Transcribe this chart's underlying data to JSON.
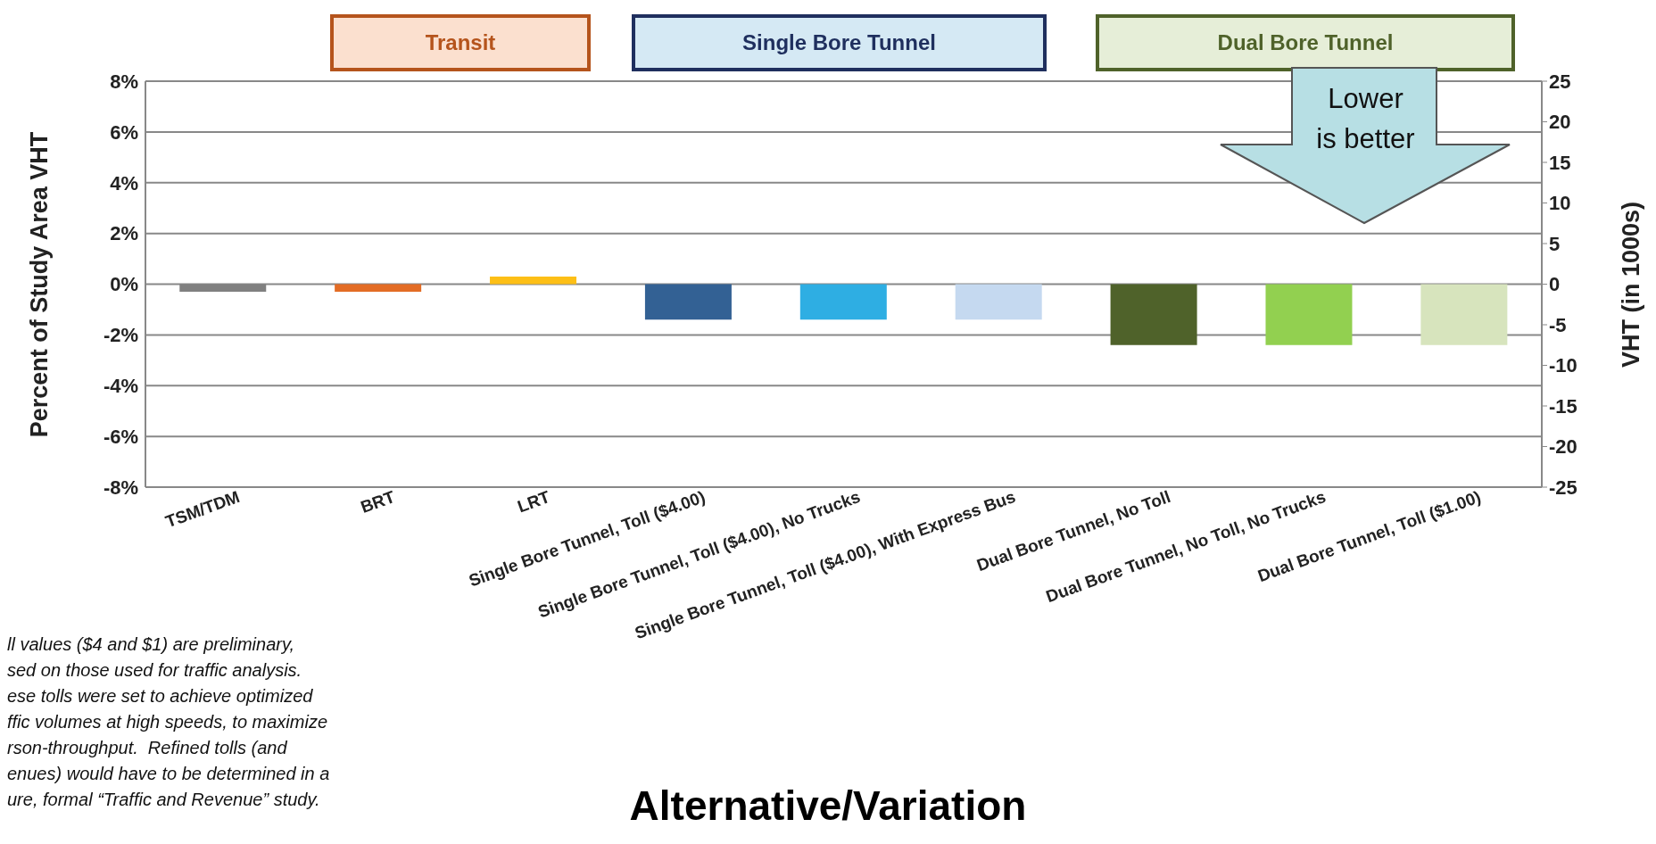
{
  "chart_data": {
    "type": "bar",
    "xlabel": "Alternative/Variation",
    "ylabel": "Percent of Study Area VHT",
    "y2label": "VHT (in 1000s)",
    "categories": [
      "TSM/TDM",
      "BRT",
      "LRT",
      "Single Bore Tunnel, Toll ($4.00)",
      "Single Bore Tunnel, Toll ($4.00), No Trucks",
      "Single Bore Tunnel, Toll ($4.00), With Express Bus",
      "Dual Bore Tunnel, No Toll",
      "Dual Bore Tunnel, No Toll, No Trucks",
      "Dual Bore Tunnel, Toll ($1.00)"
    ],
    "values": [
      -0.3,
      -0.3,
      0.3,
      -1.4,
      -1.4,
      -1.4,
      -2.4,
      -2.4,
      -2.4
    ],
    "colors": [
      "#808080",
      "#e36c25",
      "#fdbf16",
      "#336194",
      "#2eaee3",
      "#c5d9f0",
      "#4f622a",
      "#92d050",
      "#d7e4bd"
    ],
    "ylim": [
      -8,
      8
    ],
    "yticks": [
      {
        "value": -8,
        "label": "-8%"
      },
      {
        "value": -6,
        "label": "-6%"
      },
      {
        "value": -4,
        "label": "-4%"
      },
      {
        "value": -2,
        "label": "-2%"
      },
      {
        "value": 0,
        "label": "0%"
      },
      {
        "value": 2,
        "label": "2%"
      },
      {
        "value": 4,
        "label": "4%"
      },
      {
        "value": 6,
        "label": "6%"
      },
      {
        "value": 8,
        "label": "8%"
      }
    ],
    "y2lim": [
      -25,
      25
    ],
    "y2ticks": [
      -25,
      -20,
      -15,
      -10,
      -5,
      0,
      5,
      10,
      15,
      20,
      25
    ],
    "grid": "y",
    "annotations": [
      "Transit",
      "Single Bore Tunnel",
      "Dual Bore Tunnel",
      "Lower is better",
      "ll values ($4 and $1) are preliminary,\nsed on those used for traffic analysis.\nese tolls were set to achieve optimized\nffic volumes at high speeds, to maximize\nrson-throughput.  Refined tolls (and\nenues) would have to be determined in a\nure, formal “Traffic and Revenue” study."
    ]
  }
}
